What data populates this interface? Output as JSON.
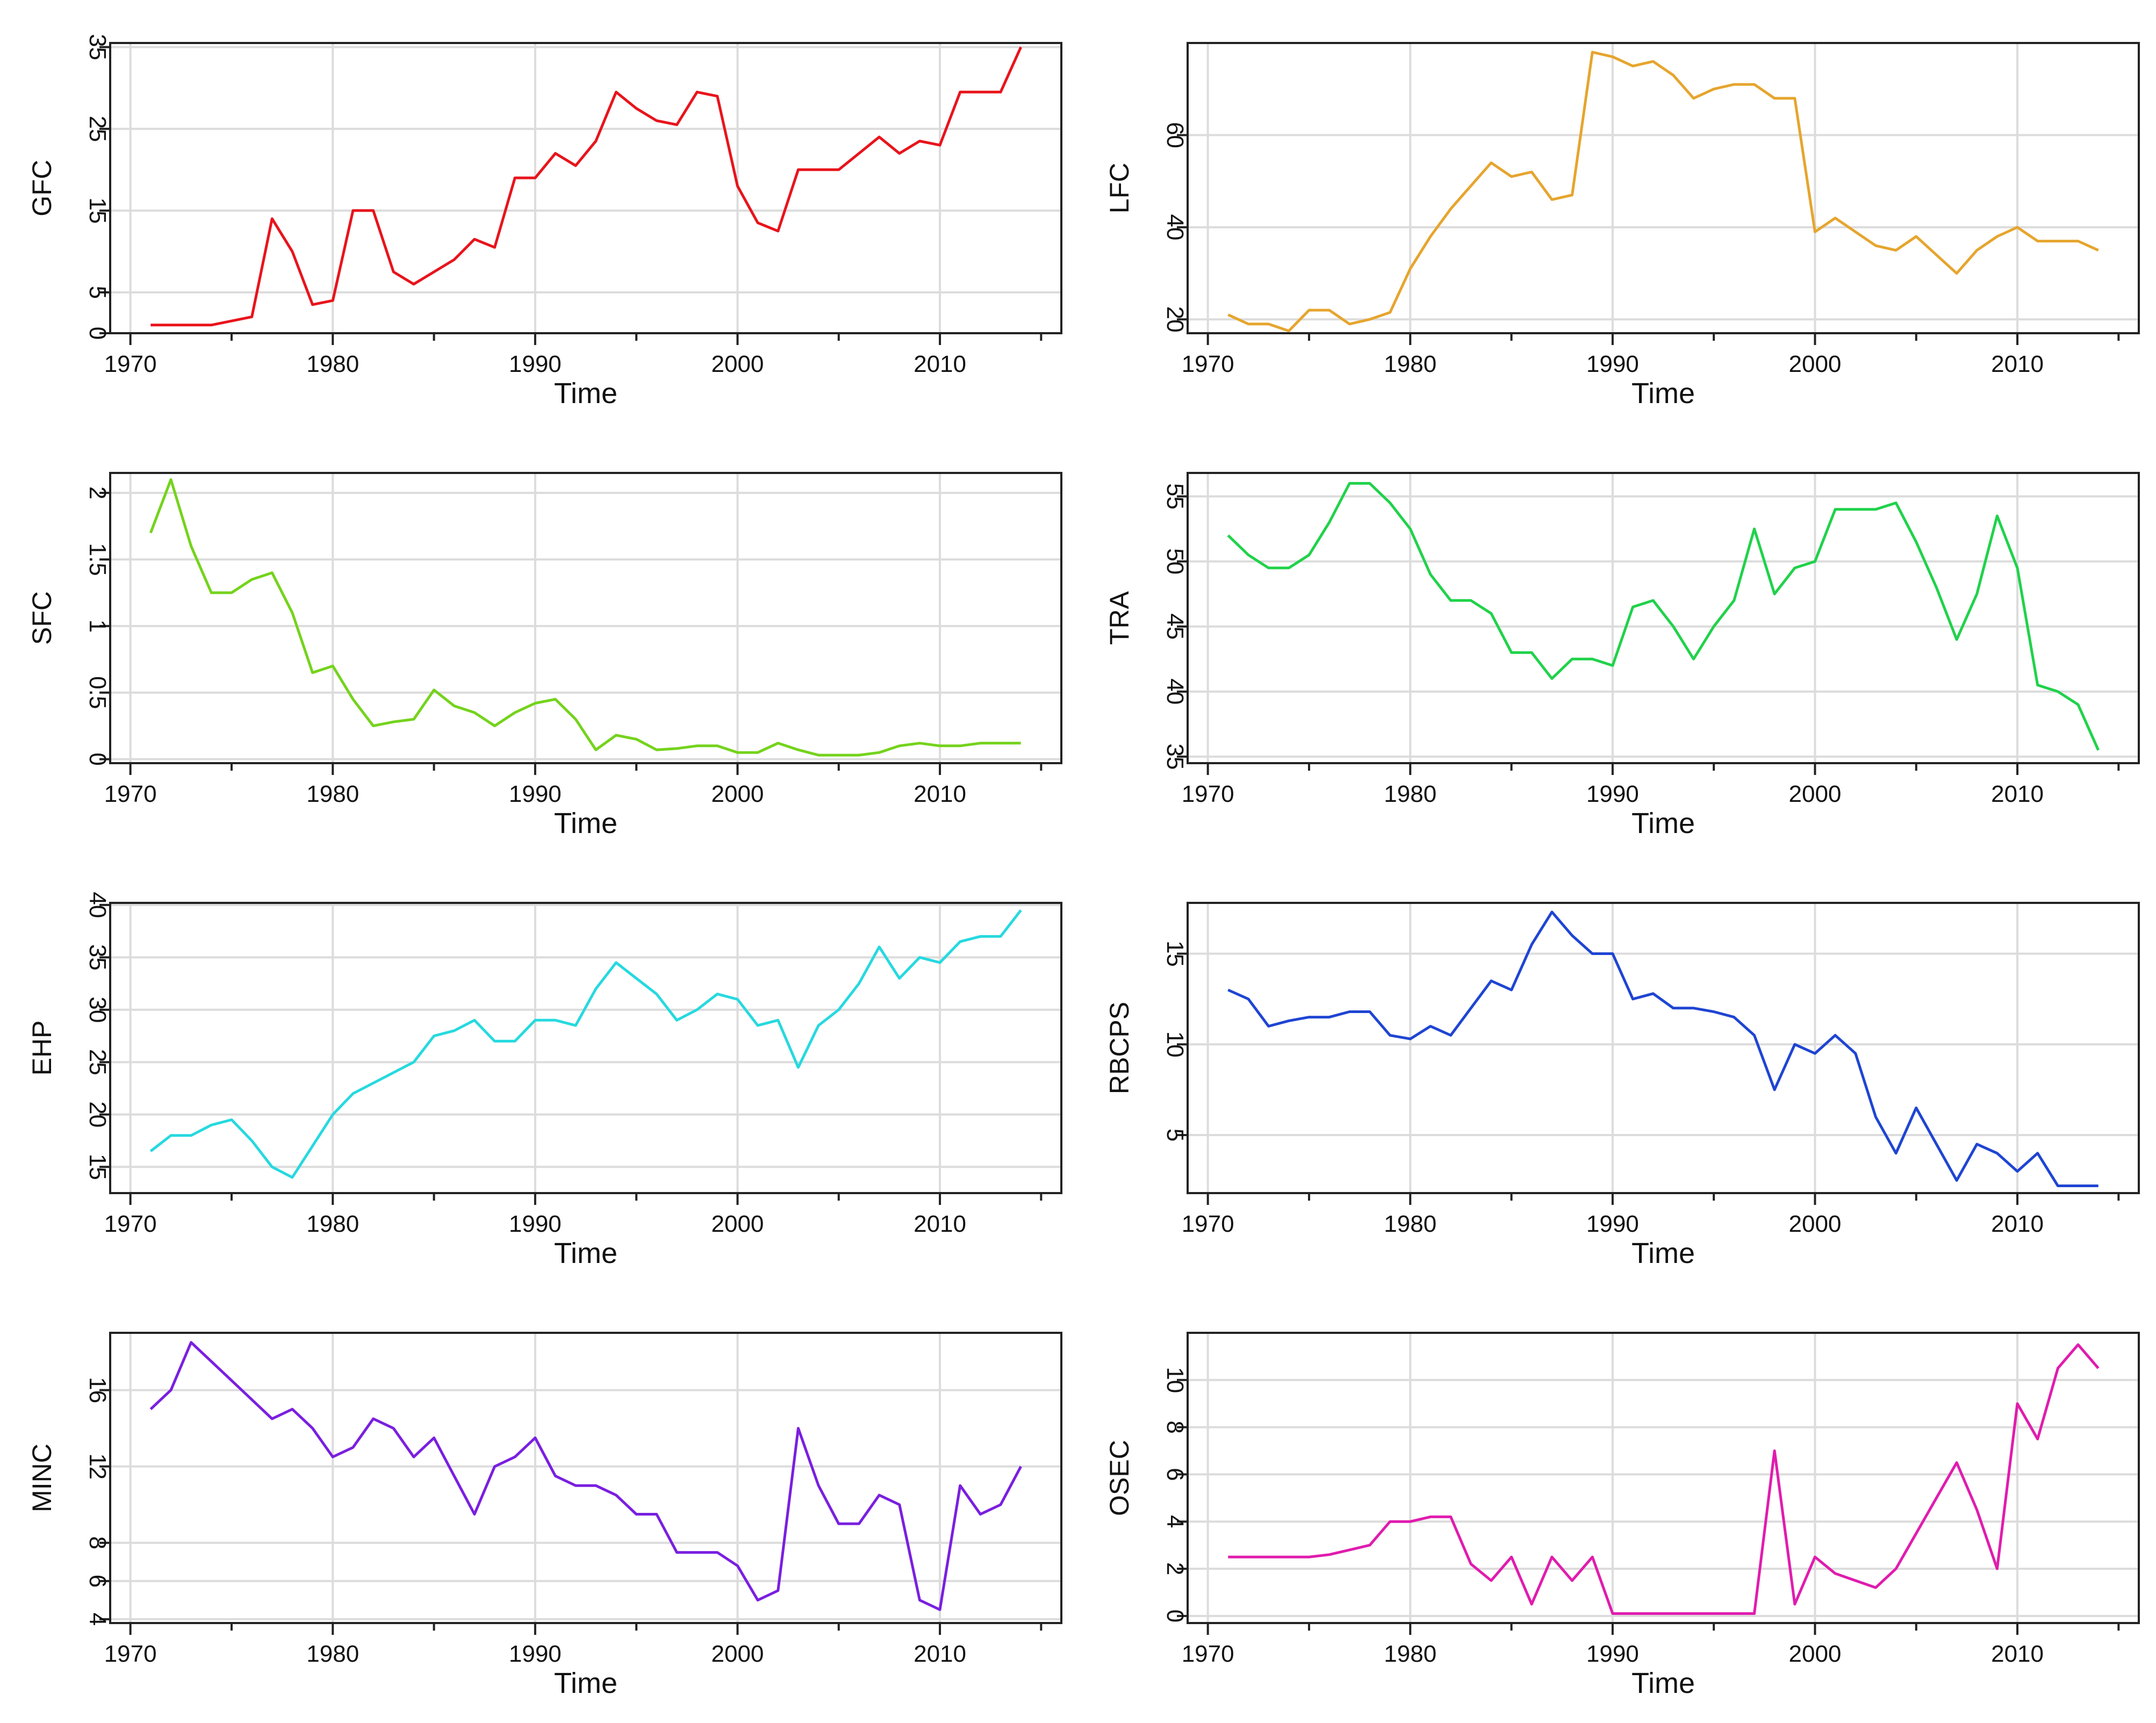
{
  "chart_data": [
    {
      "type": "line",
      "ylabel": "GFC",
      "xlabel": "Time",
      "color": "#e8141c",
      "xlim": [
        1969,
        2016
      ],
      "ylim": [
        0,
        35.5
      ],
      "yticks": [
        0,
        5,
        15,
        25,
        35
      ],
      "xticks": [
        1970,
        1980,
        1990,
        2000,
        2010
      ],
      "x": [
        1971,
        1972,
        1973,
        1974,
        1975,
        1976,
        1977,
        1978,
        1979,
        1980,
        1981,
        1982,
        1983,
        1984,
        1985,
        1986,
        1987,
        1988,
        1989,
        1990,
        1991,
        1992,
        1993,
        1994,
        1995,
        1996,
        1997,
        1998,
        1999,
        2000,
        2001,
        2002,
        2003,
        2004,
        2005,
        2006,
        2007,
        2008,
        2009,
        2010,
        2011,
        2012,
        2013,
        2014
      ],
      "values": [
        1,
        1,
        1,
        1,
        1.5,
        2,
        14,
        10,
        3.5,
        4,
        15,
        15,
        7.5,
        6,
        7.5,
        9,
        11.5,
        10.5,
        19,
        19,
        22,
        20.5,
        23.5,
        29.5,
        27.5,
        26,
        25.5,
        29.5,
        29,
        18,
        13.5,
        12.5,
        20,
        20,
        20,
        22,
        24,
        22,
        23.5,
        23,
        29.5,
        29.5,
        29.5,
        35
      ]
    },
    {
      "type": "line",
      "ylabel": "LFC",
      "xlabel": "Time",
      "color": "#e6a52e",
      "xlim": [
        1969,
        2016
      ],
      "ylim": [
        17,
        80
      ],
      "yticks": [
        20,
        40,
        60
      ],
      "xticks": [
        1970,
        1980,
        1990,
        2000,
        2010
      ],
      "x": [
        1971,
        1972,
        1973,
        1974,
        1975,
        1976,
        1977,
        1978,
        1979,
        1980,
        1981,
        1982,
        1983,
        1984,
        1985,
        1986,
        1987,
        1988,
        1989,
        1990,
        1991,
        1992,
        1993,
        1994,
        1995,
        1996,
        1997,
        1998,
        1999,
        2000,
        2001,
        2002,
        2003,
        2004,
        2005,
        2006,
        2007,
        2008,
        2009,
        2010,
        2011,
        2012,
        2013,
        2014
      ],
      "values": [
        21,
        19,
        19,
        17.5,
        22,
        22,
        19,
        20,
        21.5,
        31,
        38,
        44,
        49,
        54,
        51,
        52,
        46,
        47,
        78,
        77,
        75,
        76,
        73,
        68,
        70,
        71,
        71,
        68,
        68,
        39,
        42,
        39,
        36,
        35,
        38,
        34,
        30,
        35,
        38,
        40,
        37,
        37,
        37,
        35
      ]
    },
    {
      "type": "line",
      "ylabel": "SFC",
      "xlabel": "Time",
      "color": "#74d31c",
      "xlim": [
        1969,
        2016
      ],
      "ylim": [
        -0.03,
        2.15
      ],
      "yticks": [
        0.0,
        0.5,
        1.0,
        1.5,
        2.0
      ],
      "xticks": [
        1970,
        1980,
        1990,
        2000,
        2010
      ],
      "x": [
        1971,
        1972,
        1973,
        1974,
        1975,
        1976,
        1977,
        1978,
        1979,
        1980,
        1981,
        1982,
        1983,
        1984,
        1985,
        1986,
        1987,
        1988,
        1989,
        1990,
        1991,
        1992,
        1993,
        1994,
        1995,
        1996,
        1997,
        1998,
        1999,
        2000,
        2001,
        2002,
        2003,
        2004,
        2005,
        2006,
        2007,
        2008,
        2009,
        2010,
        2011,
        2012,
        2013,
        2014
      ],
      "values": [
        1.7,
        2.1,
        1.6,
        1.25,
        1.25,
        1.35,
        1.4,
        1.1,
        0.65,
        0.7,
        0.45,
        0.25,
        0.28,
        0.3,
        0.52,
        0.4,
        0.35,
        0.25,
        0.35,
        0.42,
        0.45,
        0.3,
        0.07,
        0.18,
        0.15,
        0.07,
        0.08,
        0.1,
        0.1,
        0.05,
        0.05,
        0.12,
        0.07,
        0.03,
        0.03,
        0.03,
        0.05,
        0.1,
        0.12,
        0.1,
        0.1,
        0.12,
        0.12,
        0.12
      ]
    },
    {
      "type": "line",
      "ylabel": "TRA",
      "xlabel": "Time",
      "color": "#20d24a",
      "xlim": [
        1969,
        2016
      ],
      "ylim": [
        34.5,
        56.8
      ],
      "yticks": [
        35,
        40,
        45,
        50,
        55
      ],
      "xticks": [
        1970,
        1980,
        1990,
        2000,
        2010
      ],
      "x": [
        1971,
        1972,
        1973,
        1974,
        1975,
        1976,
        1977,
        1978,
        1979,
        1980,
        1981,
        1982,
        1983,
        1984,
        1985,
        1986,
        1987,
        1988,
        1989,
        1990,
        1991,
        1992,
        1993,
        1994,
        1995,
        1996,
        1997,
        1998,
        1999,
        2000,
        2001,
        2002,
        2003,
        2004,
        2005,
        2006,
        2007,
        2008,
        2009,
        2010,
        2011,
        2012,
        2013,
        2014
      ],
      "values": [
        52,
        50.5,
        49.5,
        49.5,
        50.5,
        53,
        56,
        56,
        54.5,
        52.5,
        49,
        47,
        47,
        46,
        43,
        43,
        41,
        42.5,
        42.5,
        42,
        46.5,
        47,
        45,
        42.5,
        45,
        47,
        52.5,
        47.5,
        49.5,
        50,
        54,
        54,
        54,
        54.5,
        51.5,
        48,
        44,
        47.5,
        53.5,
        49.5,
        40.5,
        40,
        39,
        35.5
      ]
    },
    {
      "type": "line",
      "ylabel": "EHP",
      "xlabel": "Time",
      "color": "#26d9df",
      "xlim": [
        1969,
        2016
      ],
      "ylim": [
        12.5,
        40.2
      ],
      "yticks": [
        15,
        20,
        25,
        30,
        35,
        40
      ],
      "xticks": [
        1970,
        1980,
        1990,
        2000,
        2010
      ],
      "x": [
        1971,
        1972,
        1973,
        1974,
        1975,
        1976,
        1977,
        1978,
        1979,
        1980,
        1981,
        1982,
        1983,
        1984,
        1985,
        1986,
        1987,
        1988,
        1989,
        1990,
        1991,
        1992,
        1993,
        1994,
        1995,
        1996,
        1997,
        1998,
        1999,
        2000,
        2001,
        2002,
        2003,
        2004,
        2005,
        2006,
        2007,
        2008,
        2009,
        2010,
        2011,
        2012,
        2013,
        2014
      ],
      "values": [
        16.5,
        18,
        18,
        19,
        19.5,
        17.5,
        15,
        14,
        17,
        20,
        22,
        23,
        24,
        25,
        27.5,
        28,
        29,
        27,
        27,
        29,
        29,
        28.5,
        32,
        34.5,
        33,
        31.5,
        29,
        30,
        31.5,
        31,
        28.5,
        29,
        24.5,
        28.5,
        30,
        32.5,
        36,
        33,
        35,
        34.5,
        36.5,
        37,
        37,
        39.5
      ]
    },
    {
      "type": "line",
      "ylabel": "RBCPS",
      "xlabel": "Time",
      "color": "#1f45d2",
      "xlim": [
        1969,
        2016
      ],
      "ylim": [
        1.8,
        17.8
      ],
      "yticks": [
        5,
        10,
        15
      ],
      "xticks": [
        1970,
        1980,
        1990,
        2000,
        2010
      ],
      "x": [
        1971,
        1972,
        1973,
        1974,
        1975,
        1976,
        1977,
        1978,
        1979,
        1980,
        1981,
        1982,
        1983,
        1984,
        1985,
        1986,
        1987,
        1988,
        1989,
        1990,
        1991,
        1992,
        1993,
        1994,
        1995,
        1996,
        1997,
        1998,
        1999,
        2000,
        2001,
        2002,
        2003,
        2004,
        2005,
        2006,
        2007,
        2008,
        2009,
        2010,
        2011,
        2012,
        2013,
        2014
      ],
      "values": [
        13,
        12.5,
        11,
        11.3,
        11.5,
        11.5,
        11.8,
        11.8,
        10.5,
        10.3,
        11,
        10.5,
        12,
        13.5,
        13,
        15.5,
        17.3,
        16,
        15,
        15,
        12.5,
        12.8,
        12,
        12,
        11.8,
        11.5,
        10.5,
        7.5,
        10,
        9.5,
        10.5,
        9.5,
        6,
        4,
        6.5,
        4.5,
        2.5,
        4.5,
        4,
        3,
        4,
        2.2,
        2.2,
        2.2
      ]
    },
    {
      "type": "line",
      "ylabel": "MINC",
      "xlabel": "Time",
      "color": "#7a1fe0",
      "xlim": [
        1969,
        2016
      ],
      "ylim": [
        3.8,
        19
      ],
      "yticks": [
        4,
        6,
        8,
        12,
        16
      ],
      "xticks": [
        1970,
        1980,
        1990,
        2000,
        2010
      ],
      "x": [
        1971,
        1972,
        1973,
        1974,
        1975,
        1976,
        1977,
        1978,
        1979,
        1980,
        1981,
        1982,
        1983,
        1984,
        1985,
        1986,
        1987,
        1988,
        1989,
        1990,
        1991,
        1992,
        1993,
        1994,
        1995,
        1996,
        1997,
        1998,
        1999,
        2000,
        2001,
        2002,
        2003,
        2004,
        2005,
        2006,
        2007,
        2008,
        2009,
        2010,
        2011,
        2012,
        2013,
        2014
      ],
      "values": [
        15,
        16,
        18.5,
        17.5,
        16.5,
        15.5,
        14.5,
        15,
        14,
        12.5,
        13,
        14.5,
        14,
        12.5,
        13.5,
        11.5,
        9.5,
        12,
        12.5,
        13.5,
        11.5,
        11,
        11,
        10.5,
        9.5,
        9.5,
        7.5,
        7.5,
        7.5,
        6.8,
        5,
        5.5,
        14,
        11,
        9,
        9,
        10.5,
        10,
        5,
        4.5,
        11,
        9.5,
        10,
        12
      ]
    },
    {
      "type": "line",
      "ylabel": "OSEC",
      "xlabel": "Time",
      "color": "#e01cae",
      "xlim": [
        1969,
        2016
      ],
      "ylim": [
        -0.3,
        12
      ],
      "yticks": [
        0,
        2,
        4,
        6,
        8,
        10
      ],
      "xticks": [
        1970,
        1980,
        1990,
        2000,
        2010
      ],
      "x": [
        1971,
        1972,
        1973,
        1974,
        1975,
        1976,
        1977,
        1978,
        1979,
        1980,
        1981,
        1982,
        1983,
        1984,
        1985,
        1986,
        1987,
        1988,
        1989,
        1990,
        1991,
        1992,
        1993,
        1994,
        1995,
        1996,
        1997,
        1998,
        1999,
        2000,
        2001,
        2002,
        2003,
        2004,
        2005,
        2006,
        2007,
        2008,
        2009,
        2010,
        2011,
        2012,
        2013,
        2014
      ],
      "values": [
        2.5,
        2.5,
        2.5,
        2.5,
        2.5,
        2.6,
        2.8,
        3,
        4,
        4,
        4.2,
        4.2,
        2.2,
        1.5,
        2.5,
        0.5,
        2.5,
        1.5,
        2.5,
        0.1,
        0.1,
        0.1,
        0.1,
        0.1,
        0.1,
        0.1,
        0.1,
        7,
        0.5,
        2.5,
        1.8,
        1.5,
        1.2,
        2,
        3.5,
        5,
        6.5,
        4.5,
        2,
        9,
        7.5,
        10.5,
        11.5,
        10.5
      ]
    }
  ]
}
